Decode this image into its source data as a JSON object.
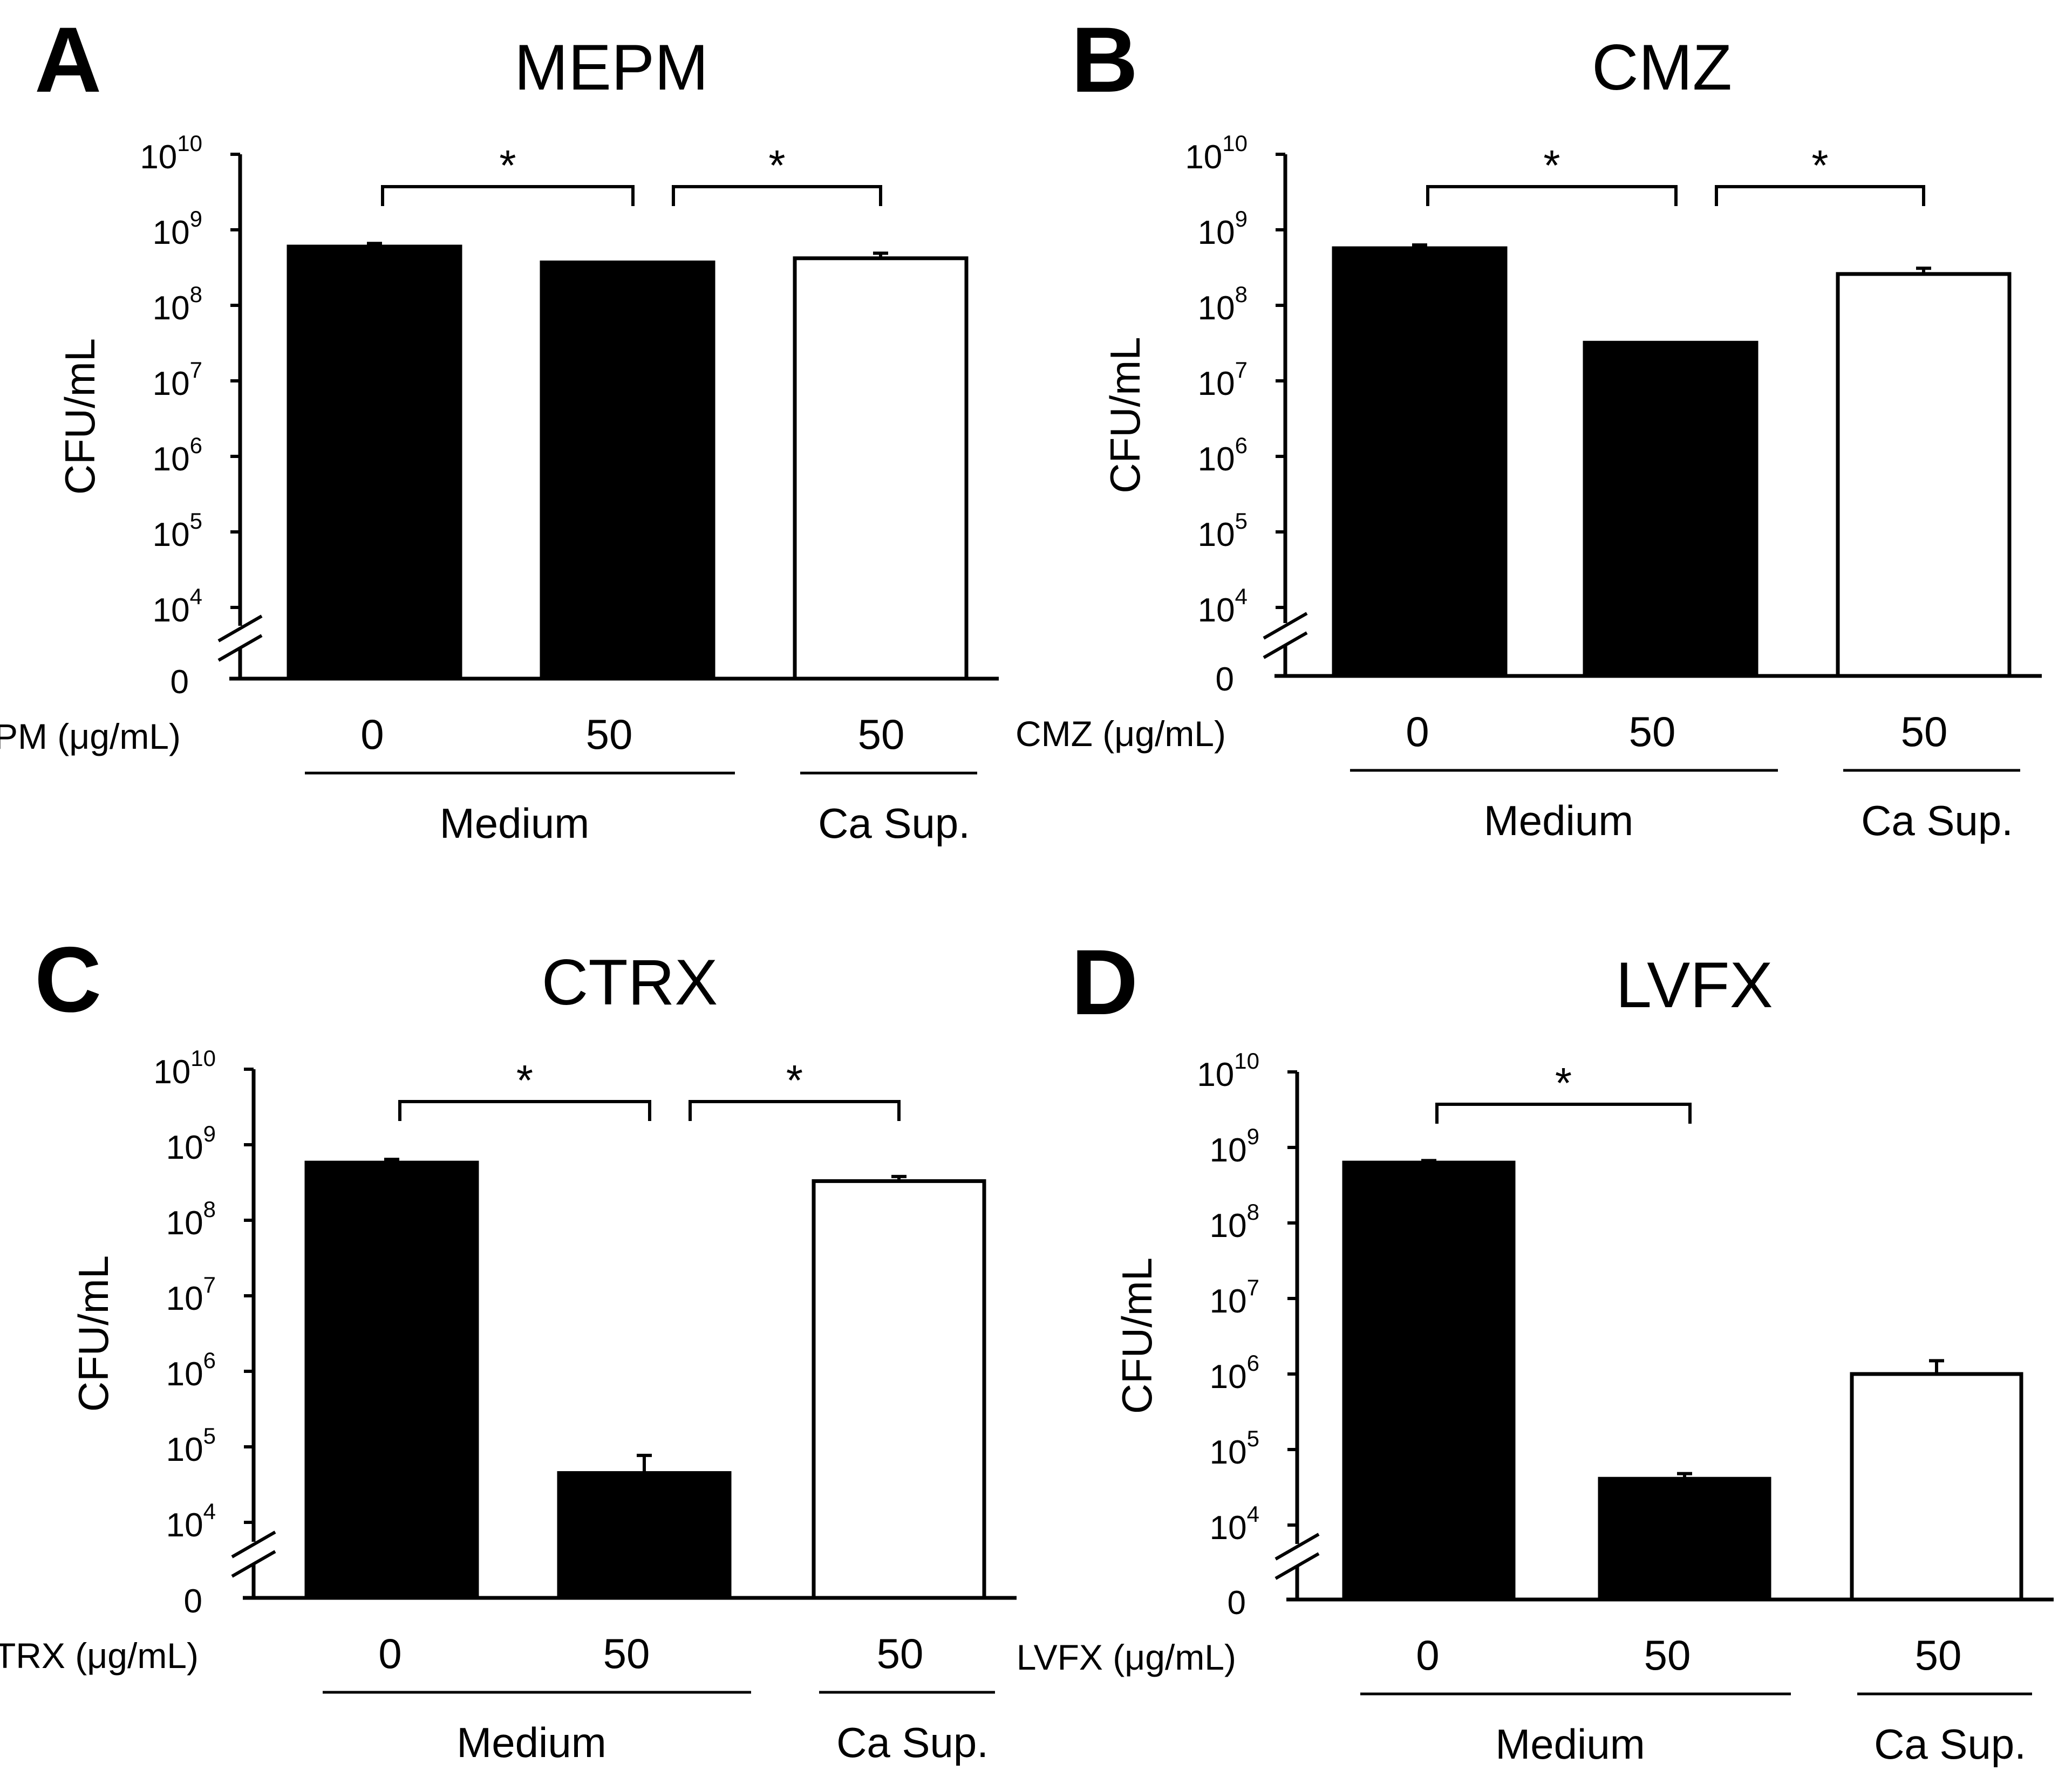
{
  "figure": {
    "y_axis_label": "CFU/mL",
    "y_tick_base": "10",
    "zero_label": "0",
    "group_medium": "Medium",
    "group_supernatant": "Ca Sup."
  },
  "chart_data": [
    {
      "panel": "A",
      "type": "bar",
      "title": "MEPM",
      "y_scale": "log (broken axis at 10^4, baseline 0)",
      "ylabel": "CFU/mL",
      "ylim": [
        0,
        10000000000
      ],
      "y_ticks": [
        "4",
        "5",
        "6",
        "7",
        "8",
        "9",
        "10"
      ],
      "dose_label": "MEPM (μg/mL)",
      "categories": [
        "0",
        "50",
        "50"
      ],
      "groups": [
        "Medium",
        "Medium",
        "Ca Sup."
      ],
      "series": [
        {
          "name": "CFU/mL",
          "values": [
            600000000,
            370000000,
            420000000
          ]
        }
      ],
      "error_plus": [
        60000000,
        600000,
        70000000
      ],
      "colors": [
        "#000000",
        "#000000",
        "#ffffff"
      ],
      "significance": [
        {
          "from": 0,
          "to": 1,
          "label": "*"
        },
        {
          "from": 1,
          "to": 2,
          "label": "*"
        }
      ]
    },
    {
      "panel": "B",
      "type": "bar",
      "title": "CMZ",
      "y_scale": "log (broken axis at 10^4, baseline 0)",
      "ylabel": "CFU/mL",
      "ylim": [
        0,
        10000000000
      ],
      "y_ticks": [
        "4",
        "5",
        "6",
        "7",
        "8",
        "9",
        "10"
      ],
      "dose_label": "CMZ (μg/mL)",
      "categories": [
        "0",
        "50",
        "50"
      ],
      "groups": [
        "Medium",
        "Medium",
        "Ca Sup."
      ],
      "series": [
        {
          "name": "CFU/mL",
          "values": [
            570000000,
            32000000,
            260000000
          ]
        }
      ],
      "error_plus": [
        60000000,
        15000,
        50000000
      ],
      "colors": [
        "#000000",
        "#000000",
        "#ffffff"
      ],
      "significance": [
        {
          "from": 0,
          "to": 1,
          "label": "*"
        },
        {
          "from": 1,
          "to": 2,
          "label": "*"
        }
      ]
    },
    {
      "panel": "C",
      "type": "bar",
      "title": "CTRX",
      "y_scale": "log (broken axis at 10^4, baseline 0)",
      "ylabel": "CFU/mL",
      "ylim": [
        0,
        10000000000
      ],
      "y_ticks": [
        "4",
        "5",
        "6",
        "7",
        "8",
        "9",
        "10"
      ],
      "dose_label": "CTRX (μg/mL)",
      "categories": [
        "0",
        "50",
        "50"
      ],
      "groups": [
        "Medium",
        "Medium",
        "Ca Sup."
      ],
      "series": [
        {
          "name": "CFU/mL",
          "values": [
            580000000,
            45000,
            330000000
          ]
        }
      ],
      "error_plus": [
        60000000,
        32000,
        50000000
      ],
      "colors": [
        "#000000",
        "#000000",
        "#ffffff"
      ],
      "significance": [
        {
          "from": 0,
          "to": 1,
          "label": "*"
        },
        {
          "from": 1,
          "to": 2,
          "label": "*"
        }
      ]
    },
    {
      "panel": "D",
      "type": "bar",
      "title": "LVFX",
      "y_scale": "log (broken axis at 10^4, baseline 0)",
      "ylabel": "CFU/mL",
      "ylim": [
        0,
        10000000000
      ],
      "y_ticks": [
        "4",
        "5",
        "6",
        "7",
        "8",
        "9",
        "10"
      ],
      "dose_label": "LVFX (μg/mL)",
      "categories": [
        "0",
        "50",
        "50"
      ],
      "groups": [
        "Medium",
        "Medium",
        "Ca Sup."
      ],
      "series": [
        {
          "name": "CFU/mL",
          "values": [
            630000000,
            41000,
            1000000
          ]
        }
      ],
      "error_plus": [
        40000000,
        7000,
        500000
      ],
      "colors": [
        "#000000",
        "#000000",
        "#ffffff"
      ],
      "significance": [
        {
          "from": 0,
          "to": 1,
          "label": "*"
        }
      ]
    }
  ]
}
